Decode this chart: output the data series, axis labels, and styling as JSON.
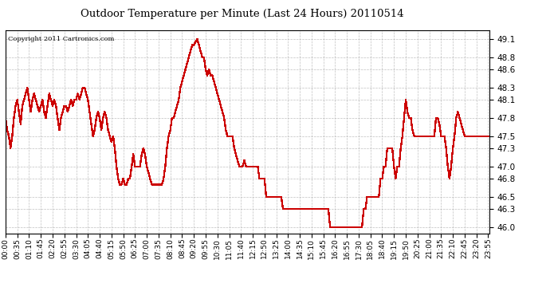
{
  "title": "Outdoor Temperature per Minute (Last 24 Hours) 20110514",
  "copyright_text": "Copyright 2011 Cartronics.com",
  "line_color": "#cc0000",
  "bg_color": "#ffffff",
  "plot_bg_color": "#ffffff",
  "grid_color": "#b0b0b0",
  "ylim": [
    45.9,
    49.25
  ],
  "yticks": [
    46.0,
    46.3,
    46.5,
    46.8,
    47.0,
    47.3,
    47.5,
    47.8,
    48.1,
    48.3,
    48.6,
    48.8,
    49.1
  ],
  "xtick_labels": [
    "00:00",
    "00:35",
    "01:10",
    "01:45",
    "02:20",
    "02:55",
    "03:30",
    "04:05",
    "04:40",
    "05:15",
    "05:50",
    "06:25",
    "07:00",
    "07:35",
    "08:10",
    "08:45",
    "09:20",
    "09:55",
    "10:30",
    "11:05",
    "11:40",
    "12:15",
    "12:50",
    "13:25",
    "14:00",
    "14:35",
    "15:10",
    "15:45",
    "16:20",
    "16:55",
    "17:30",
    "18:05",
    "18:40",
    "19:15",
    "19:50",
    "20:25",
    "21:00",
    "21:35",
    "22:10",
    "22:45",
    "23:20",
    "23:55"
  ],
  "keypoints": [
    [
      0,
      47.8
    ],
    [
      5,
      47.6
    ],
    [
      10,
      47.5
    ],
    [
      15,
      47.3
    ],
    [
      20,
      47.5
    ],
    [
      25,
      47.8
    ],
    [
      30,
      48.0
    ],
    [
      35,
      48.1
    ],
    [
      40,
      47.9
    ],
    [
      45,
      47.7
    ],
    [
      50,
      48.0
    ],
    [
      55,
      48.1
    ],
    [
      60,
      48.2
    ],
    [
      65,
      48.3
    ],
    [
      70,
      48.1
    ],
    [
      75,
      47.9
    ],
    [
      80,
      48.1
    ],
    [
      85,
      48.2
    ],
    [
      90,
      48.1
    ],
    [
      95,
      48.0
    ],
    [
      100,
      47.9
    ],
    [
      105,
      48.0
    ],
    [
      110,
      48.1
    ],
    [
      115,
      47.9
    ],
    [
      120,
      47.8
    ],
    [
      125,
      48.0
    ],
    [
      130,
      48.2
    ],
    [
      135,
      48.1
    ],
    [
      140,
      48.0
    ],
    [
      145,
      48.1
    ],
    [
      150,
      48.0
    ],
    [
      155,
      47.8
    ],
    [
      160,
      47.6
    ],
    [
      165,
      47.8
    ],
    [
      170,
      47.9
    ],
    [
      175,
      48.0
    ],
    [
      180,
      48.0
    ],
    [
      185,
      47.9
    ],
    [
      190,
      48.0
    ],
    [
      195,
      48.1
    ],
    [
      200,
      48.0
    ],
    [
      205,
      48.1
    ],
    [
      210,
      48.1
    ],
    [
      215,
      48.2
    ],
    [
      220,
      48.1
    ],
    [
      225,
      48.2
    ],
    [
      230,
      48.3
    ],
    [
      235,
      48.3
    ],
    [
      240,
      48.2
    ],
    [
      245,
      48.1
    ],
    [
      250,
      47.9
    ],
    [
      255,
      47.7
    ],
    [
      260,
      47.5
    ],
    [
      265,
      47.6
    ],
    [
      270,
      47.8
    ],
    [
      275,
      47.9
    ],
    [
      280,
      47.8
    ],
    [
      285,
      47.6
    ],
    [
      290,
      47.8
    ],
    [
      295,
      47.9
    ],
    [
      300,
      47.8
    ],
    [
      305,
      47.6
    ],
    [
      310,
      47.5
    ],
    [
      315,
      47.4
    ],
    [
      320,
      47.5
    ],
    [
      325,
      47.3
    ],
    [
      330,
      47.0
    ],
    [
      335,
      46.8
    ],
    [
      340,
      46.7
    ],
    [
      345,
      46.7
    ],
    [
      350,
      46.8
    ],
    [
      355,
      46.7
    ],
    [
      360,
      46.7
    ],
    [
      365,
      46.8
    ],
    [
      370,
      46.8
    ],
    [
      375,
      47.0
    ],
    [
      380,
      47.2
    ],
    [
      385,
      47.0
    ],
    [
      390,
      47.0
    ],
    [
      395,
      47.0
    ],
    [
      400,
      47.0
    ],
    [
      405,
      47.2
    ],
    [
      410,
      47.3
    ],
    [
      415,
      47.2
    ],
    [
      420,
      47.0
    ],
    [
      425,
      46.9
    ],
    [
      430,
      46.8
    ],
    [
      435,
      46.7
    ],
    [
      440,
      46.7
    ],
    [
      445,
      46.7
    ],
    [
      450,
      46.7
    ],
    [
      455,
      46.7
    ],
    [
      460,
      46.7
    ],
    [
      465,
      46.7
    ],
    [
      470,
      46.8
    ],
    [
      475,
      47.0
    ],
    [
      480,
      47.3
    ],
    [
      485,
      47.5
    ],
    [
      490,
      47.6
    ],
    [
      495,
      47.8
    ],
    [
      500,
      47.8
    ],
    [
      505,
      47.9
    ],
    [
      510,
      48.0
    ],
    [
      515,
      48.1
    ],
    [
      520,
      48.3
    ],
    [
      525,
      48.4
    ],
    [
      530,
      48.5
    ],
    [
      535,
      48.6
    ],
    [
      540,
      48.7
    ],
    [
      545,
      48.8
    ],
    [
      550,
      48.9
    ],
    [
      555,
      49.0
    ],
    [
      560,
      49.0
    ],
    [
      565,
      49.05
    ],
    [
      570,
      49.1
    ],
    [
      575,
      49.0
    ],
    [
      580,
      48.9
    ],
    [
      585,
      48.8
    ],
    [
      590,
      48.8
    ],
    [
      595,
      48.6
    ],
    [
      600,
      48.5
    ],
    [
      605,
      48.6
    ],
    [
      610,
      48.5
    ],
    [
      615,
      48.5
    ],
    [
      620,
      48.4
    ],
    [
      625,
      48.3
    ],
    [
      630,
      48.2
    ],
    [
      635,
      48.1
    ],
    [
      640,
      48.0
    ],
    [
      645,
      47.9
    ],
    [
      650,
      47.8
    ],
    [
      655,
      47.6
    ],
    [
      660,
      47.5
    ],
    [
      665,
      47.5
    ],
    [
      670,
      47.5
    ],
    [
      675,
      47.5
    ],
    [
      680,
      47.3
    ],
    [
      685,
      47.2
    ],
    [
      690,
      47.1
    ],
    [
      695,
      47.0
    ],
    [
      700,
      47.0
    ],
    [
      705,
      47.0
    ],
    [
      710,
      47.1
    ],
    [
      715,
      47.0
    ],
    [
      720,
      47.0
    ],
    [
      725,
      47.0
    ],
    [
      730,
      47.0
    ],
    [
      735,
      47.0
    ],
    [
      740,
      47.0
    ],
    [
      745,
      47.0
    ],
    [
      750,
      47.0
    ],
    [
      755,
      46.8
    ],
    [
      760,
      46.8
    ],
    [
      765,
      46.8
    ],
    [
      770,
      46.8
    ],
    [
      775,
      46.5
    ],
    [
      780,
      46.5
    ],
    [
      785,
      46.5
    ],
    [
      790,
      46.5
    ],
    [
      795,
      46.5
    ],
    [
      800,
      46.5
    ],
    [
      805,
      46.5
    ],
    [
      810,
      46.5
    ],
    [
      815,
      46.5
    ],
    [
      820,
      46.5
    ],
    [
      825,
      46.3
    ],
    [
      830,
      46.3
    ],
    [
      835,
      46.3
    ],
    [
      840,
      46.3
    ],
    [
      845,
      46.3
    ],
    [
      850,
      46.3
    ],
    [
      855,
      46.3
    ],
    [
      860,
      46.3
    ],
    [
      865,
      46.3
    ],
    [
      870,
      46.3
    ],
    [
      875,
      46.3
    ],
    [
      880,
      46.3
    ],
    [
      885,
      46.3
    ],
    [
      890,
      46.3
    ],
    [
      895,
      46.3
    ],
    [
      900,
      46.3
    ],
    [
      905,
      46.3
    ],
    [
      910,
      46.3
    ],
    [
      915,
      46.3
    ],
    [
      920,
      46.3
    ],
    [
      925,
      46.3
    ],
    [
      930,
      46.3
    ],
    [
      935,
      46.3
    ],
    [
      940,
      46.3
    ],
    [
      945,
      46.3
    ],
    [
      950,
      46.3
    ],
    [
      955,
      46.3
    ],
    [
      960,
      46.3
    ],
    [
      965,
      46.0
    ],
    [
      970,
      46.0
    ],
    [
      975,
      46.0
    ],
    [
      980,
      46.0
    ],
    [
      985,
      46.0
    ],
    [
      990,
      46.0
    ],
    [
      995,
      46.0
    ],
    [
      1000,
      46.0
    ],
    [
      1005,
      46.0
    ],
    [
      1010,
      46.0
    ],
    [
      1015,
      46.0
    ],
    [
      1020,
      46.0
    ],
    [
      1025,
      46.0
    ],
    [
      1030,
      46.0
    ],
    [
      1035,
      46.0
    ],
    [
      1040,
      46.0
    ],
    [
      1045,
      46.0
    ],
    [
      1050,
      46.0
    ],
    [
      1055,
      46.0
    ],
    [
      1060,
      46.0
    ],
    [
      1065,
      46.3
    ],
    [
      1070,
      46.3
    ],
    [
      1075,
      46.5
    ],
    [
      1080,
      46.5
    ],
    [
      1085,
      46.5
    ],
    [
      1090,
      46.5
    ],
    [
      1095,
      46.5
    ],
    [
      1100,
      46.5
    ],
    [
      1105,
      46.5
    ],
    [
      1110,
      46.5
    ],
    [
      1115,
      46.8
    ],
    [
      1120,
      46.8
    ],
    [
      1125,
      47.0
    ],
    [
      1130,
      47.0
    ],
    [
      1135,
      47.3
    ],
    [
      1140,
      47.3
    ],
    [
      1145,
      47.3
    ],
    [
      1150,
      47.3
    ],
    [
      1155,
      47.0
    ],
    [
      1160,
      46.8
    ],
    [
      1165,
      47.0
    ],
    [
      1170,
      47.0
    ],
    [
      1175,
      47.3
    ],
    [
      1180,
      47.5
    ],
    [
      1185,
      47.8
    ],
    [
      1190,
      48.1
    ],
    [
      1195,
      47.9
    ],
    [
      1200,
      47.8
    ],
    [
      1205,
      47.8
    ],
    [
      1210,
      47.6
    ],
    [
      1215,
      47.5
    ],
    [
      1220,
      47.5
    ],
    [
      1225,
      47.5
    ],
    [
      1230,
      47.5
    ],
    [
      1235,
      47.5
    ],
    [
      1240,
      47.5
    ],
    [
      1245,
      47.5
    ],
    [
      1250,
      47.5
    ],
    [
      1255,
      47.5
    ],
    [
      1260,
      47.5
    ],
    [
      1265,
      47.5
    ],
    [
      1270,
      47.5
    ],
    [
      1275,
      47.5
    ],
    [
      1280,
      47.8
    ],
    [
      1285,
      47.8
    ],
    [
      1290,
      47.7
    ],
    [
      1295,
      47.5
    ],
    [
      1300,
      47.5
    ],
    [
      1305,
      47.5
    ],
    [
      1310,
      47.3
    ],
    [
      1315,
      47.0
    ],
    [
      1320,
      46.8
    ],
    [
      1325,
      47.0
    ],
    [
      1330,
      47.3
    ],
    [
      1335,
      47.5
    ],
    [
      1340,
      47.8
    ],
    [
      1345,
      47.9
    ],
    [
      1350,
      47.8
    ],
    [
      1355,
      47.7
    ],
    [
      1360,
      47.6
    ],
    [
      1365,
      47.5
    ],
    [
      1370,
      47.5
    ],
    [
      1375,
      47.5
    ],
    [
      1380,
      47.5
    ],
    [
      1385,
      47.5
    ],
    [
      1390,
      47.5
    ],
    [
      1395,
      47.5
    ],
    [
      1400,
      47.5
    ],
    [
      1405,
      47.5
    ],
    [
      1410,
      47.5
    ],
    [
      1415,
      47.5
    ],
    [
      1420,
      47.5
    ],
    [
      1425,
      47.5
    ],
    [
      1430,
      47.5
    ],
    [
      1435,
      47.5
    ],
    [
      1439,
      47.5
    ]
  ]
}
